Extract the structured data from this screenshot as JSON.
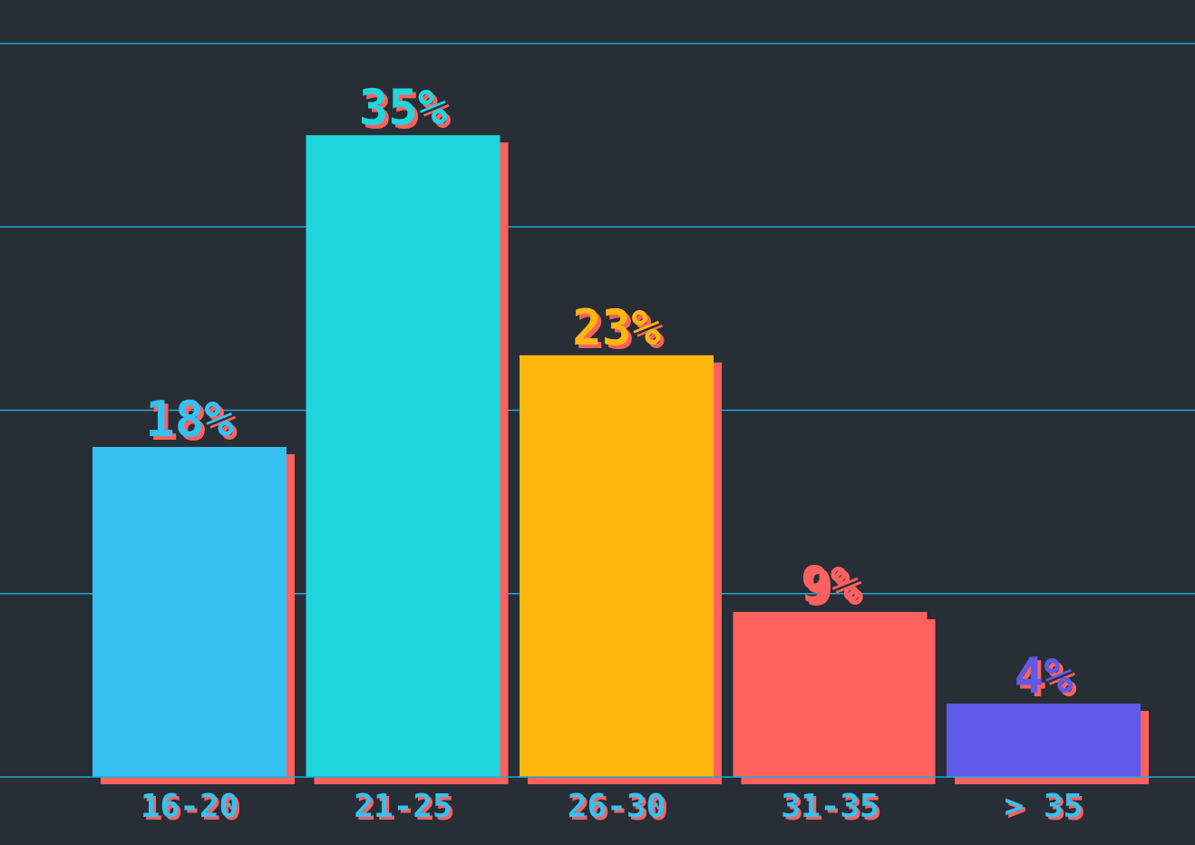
{
  "chart_data": {
    "type": "bar",
    "categories": [
      "16-20",
      "21-25",
      "26-30",
      "31-35",
      "> 35"
    ],
    "values": [
      18,
      35,
      23,
      9,
      4
    ],
    "value_labels": [
      "18%",
      "35%",
      "23%",
      "9%",
      "4%"
    ],
    "bar_colors": [
      "#35c1f1",
      "#1fd6de",
      "#ffb70d",
      "#ff615f",
      "#5f5ae8"
    ],
    "shadow_color": "#ff615f",
    "grid_color": "#1fa9d6",
    "category_label_color": "#35c1f1",
    "ylim": [
      0,
      40
    ],
    "grid_lines": [
      0,
      10,
      20,
      30,
      40
    ],
    "grid": true
  }
}
